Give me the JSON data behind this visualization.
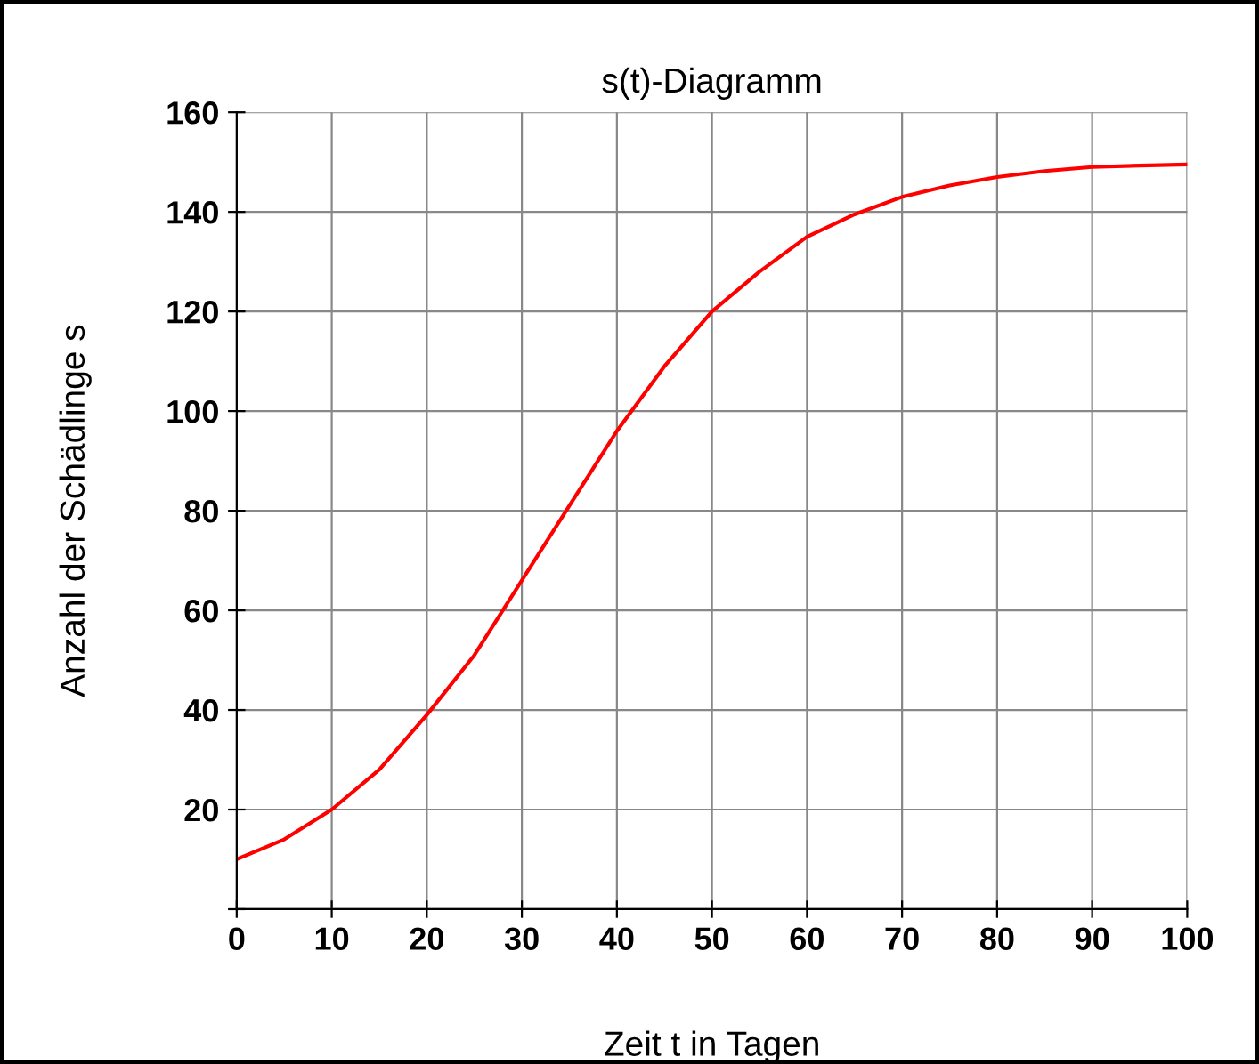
{
  "chart_data": {
    "type": "line",
    "title": "s(t)-Diagramm",
    "xlabel": "Zeit t in Tagen",
    "ylabel": "Anzahl der Schädlinge s",
    "x": [
      0,
      5,
      10,
      15,
      20,
      25,
      30,
      35,
      40,
      45,
      50,
      55,
      60,
      65,
      70,
      75,
      80,
      85,
      90,
      95,
      100
    ],
    "series": [
      {
        "color": "#ff0000",
        "values": [
          10,
          14,
          20,
          28,
          39,
          51,
          66,
          81,
          96,
          109,
          120,
          128,
          135,
          139.5,
          143,
          145.3,
          147,
          148.2,
          149,
          149.3,
          149.5
        ]
      }
    ],
    "xlim": [
      0,
      100
    ],
    "xticks": [
      0,
      10,
      20,
      30,
      40,
      50,
      60,
      70,
      80,
      90,
      100
    ],
    "ylim": [
      0,
      160
    ],
    "yticks": [
      {
        "value": 0,
        "label": null
      },
      20,
      40,
      60,
      80,
      100,
      120,
      140,
      160
    ],
    "grid": true,
    "marker": "none",
    "line_style": "solid"
  }
}
